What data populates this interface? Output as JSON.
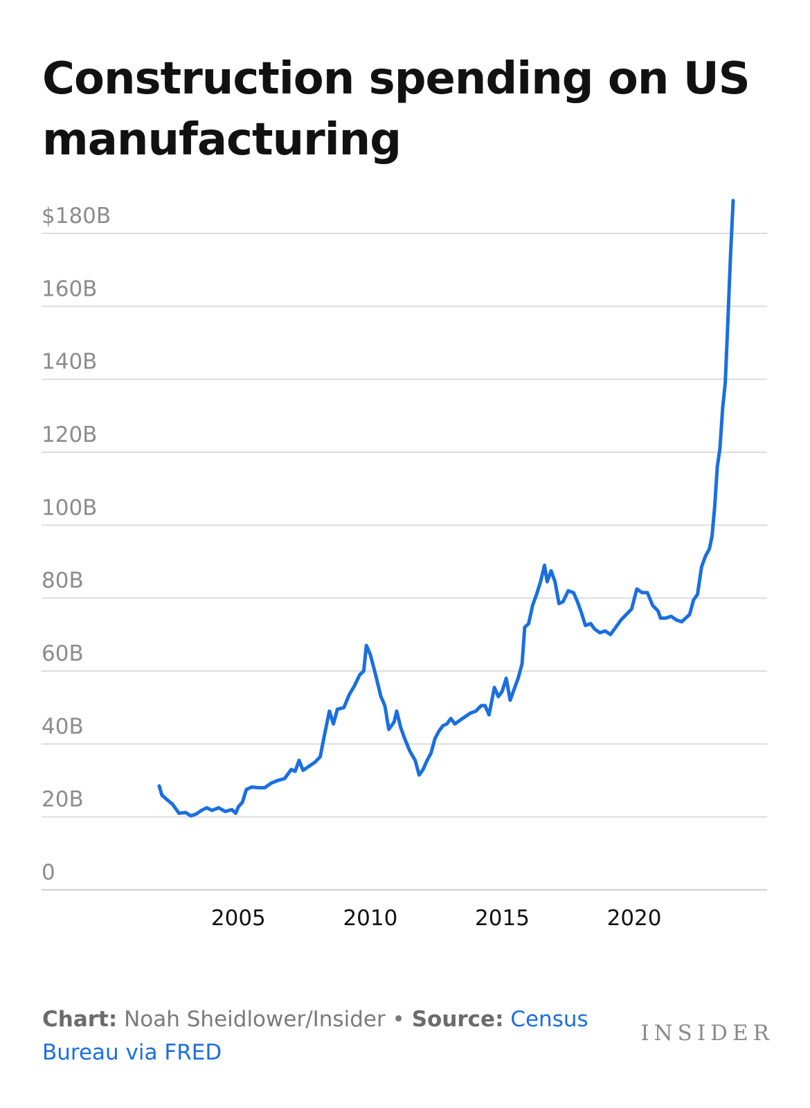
{
  "chart_data": {
    "type": "line",
    "title": "Construction spending on US manufacturing",
    "xlabel": "",
    "ylabel": "",
    "xlim": [
      2002.0,
      2023.75
    ],
    "ylim": [
      0,
      180
    ],
    "x_ticks": [
      2005,
      2010,
      2015,
      2020
    ],
    "x_tick_labels": [
      "2005",
      "2010",
      "2015",
      "2020"
    ],
    "y_ticks": [
      0,
      20,
      40,
      60,
      80,
      100,
      120,
      140,
      160,
      180
    ],
    "y_tick_labels": [
      "0",
      "20B",
      "40B",
      "60B",
      "80B",
      "100B",
      "120B",
      "140B",
      "160B",
      "$180B"
    ],
    "grid": true,
    "legend": "none",
    "series_color": "#1a6fe0",
    "series": [
      {
        "points": [
          [
            2002.0,
            28.5
          ],
          [
            2002.1,
            26.0
          ],
          [
            2002.25,
            25.0
          ],
          [
            2002.5,
            23.5
          ],
          [
            2002.75,
            21.0
          ],
          [
            2003.0,
            21.2
          ],
          [
            2003.2,
            20.3
          ],
          [
            2003.4,
            20.8
          ],
          [
            2003.6,
            21.8
          ],
          [
            2003.8,
            22.5
          ],
          [
            2004.0,
            21.8
          ],
          [
            2004.25,
            22.5
          ],
          [
            2004.5,
            21.5
          ],
          [
            2004.75,
            22.0
          ],
          [
            2004.9,
            21.0
          ],
          [
            2005.0,
            22.8
          ],
          [
            2005.15,
            24.0
          ],
          [
            2005.3,
            27.5
          ],
          [
            2005.5,
            28.2
          ],
          [
            2005.75,
            28.0
          ],
          [
            2006.0,
            28.0
          ],
          [
            2006.25,
            29.3
          ],
          [
            2006.5,
            30.0
          ],
          [
            2006.75,
            30.5
          ],
          [
            2006.9,
            32.0
          ],
          [
            2007.0,
            33.0
          ],
          [
            2007.15,
            32.5
          ],
          [
            2007.3,
            35.5
          ],
          [
            2007.45,
            32.8
          ],
          [
            2007.6,
            33.5
          ],
          [
            2007.9,
            35.0
          ],
          [
            2008.1,
            36.5
          ],
          [
            2008.25,
            42.0
          ],
          [
            2008.45,
            49.0
          ],
          [
            2008.6,
            45.5
          ],
          [
            2008.75,
            49.5
          ],
          [
            2009.0,
            50.0
          ],
          [
            2009.2,
            53.5
          ],
          [
            2009.4,
            56.0
          ],
          [
            2009.6,
            59.0
          ],
          [
            2009.75,
            60.0
          ],
          [
            2009.85,
            67.0
          ],
          [
            2010.0,
            64.5
          ],
          [
            2010.2,
            59.0
          ],
          [
            2010.4,
            53.0
          ],
          [
            2010.55,
            50.5
          ],
          [
            2010.7,
            44.0
          ],
          [
            2010.9,
            46.0
          ],
          [
            2011.0,
            49.0
          ],
          [
            2011.15,
            44.5
          ],
          [
            2011.3,
            41.5
          ],
          [
            2011.5,
            38.0
          ],
          [
            2011.7,
            35.5
          ],
          [
            2011.85,
            31.5
          ],
          [
            2012.0,
            33.0
          ],
          [
            2012.15,
            35.5
          ],
          [
            2012.3,
            37.5
          ],
          [
            2012.45,
            41.5
          ],
          [
            2012.6,
            43.5
          ],
          [
            2012.75,
            45.0
          ],
          [
            2012.9,
            45.5
          ],
          [
            2013.05,
            47.0
          ],
          [
            2013.2,
            45.5
          ],
          [
            2013.4,
            46.5
          ],
          [
            2013.6,
            47.5
          ],
          [
            2013.8,
            48.5
          ],
          [
            2014.0,
            49.0
          ],
          [
            2014.2,
            50.5
          ],
          [
            2014.35,
            50.5
          ],
          [
            2014.5,
            48.0
          ],
          [
            2014.7,
            55.5
          ],
          [
            2014.85,
            53.0
          ],
          [
            2015.0,
            54.5
          ],
          [
            2015.15,
            58.0
          ],
          [
            2015.3,
            52.0
          ],
          [
            2015.45,
            55.0
          ],
          [
            2015.6,
            58.0
          ],
          [
            2015.75,
            62.0
          ],
          [
            2015.85,
            72.0
          ],
          [
            2016.0,
            73.0
          ],
          [
            2016.15,
            78.0
          ],
          [
            2016.3,
            81.0
          ],
          [
            2016.45,
            84.5
          ],
          [
            2016.6,
            89.0
          ],
          [
            2016.7,
            84.5
          ],
          [
            2016.85,
            87.5
          ],
          [
            2017.0,
            84.5
          ],
          [
            2017.15,
            78.5
          ],
          [
            2017.3,
            79.0
          ],
          [
            2017.5,
            82.0
          ],
          [
            2017.7,
            81.5
          ],
          [
            2017.85,
            79.0
          ],
          [
            2018.0,
            76.0
          ],
          [
            2018.15,
            72.5
          ],
          [
            2018.35,
            73.0
          ],
          [
            2018.5,
            71.5
          ],
          [
            2018.7,
            70.5
          ],
          [
            2018.9,
            71.0
          ],
          [
            2019.1,
            70.0
          ],
          [
            2019.3,
            72.0
          ],
          [
            2019.5,
            74.0
          ],
          [
            2019.7,
            75.5
          ],
          [
            2019.9,
            77.0
          ],
          [
            2020.1,
            82.5
          ],
          [
            2020.3,
            81.5
          ],
          [
            2020.5,
            81.5
          ],
          [
            2020.7,
            78.0
          ],
          [
            2020.9,
            76.5
          ],
          [
            2021.0,
            74.5
          ],
          [
            2021.2,
            74.5
          ],
          [
            2021.4,
            75.0
          ],
          [
            2021.6,
            74.0
          ],
          [
            2021.8,
            73.5
          ],
          [
            2021.95,
            74.5
          ],
          [
            2022.1,
            75.5
          ],
          [
            2022.25,
            79.5
          ],
          [
            2022.4,
            81.0
          ],
          [
            2022.55,
            88.5
          ],
          [
            2022.7,
            91.5
          ],
          [
            2022.85,
            93.5
          ],
          [
            2022.95,
            97.0
          ],
          [
            2023.05,
            105.0
          ],
          [
            2023.15,
            116.0
          ],
          [
            2023.25,
            121.0
          ],
          [
            2023.35,
            132.0
          ],
          [
            2023.45,
            139.0
          ],
          [
            2023.55,
            156.0
          ],
          [
            2023.65,
            174.0
          ],
          [
            2023.75,
            189.0
          ]
        ]
      }
    ]
  },
  "footer": {
    "chart_label": "Chart:",
    "chart_author": " Noah Sheidlower/Insider",
    "separator": " • ",
    "source_label": "Source:",
    "source_text": " Census Bureau via FRED"
  },
  "brand": "INSIDER"
}
